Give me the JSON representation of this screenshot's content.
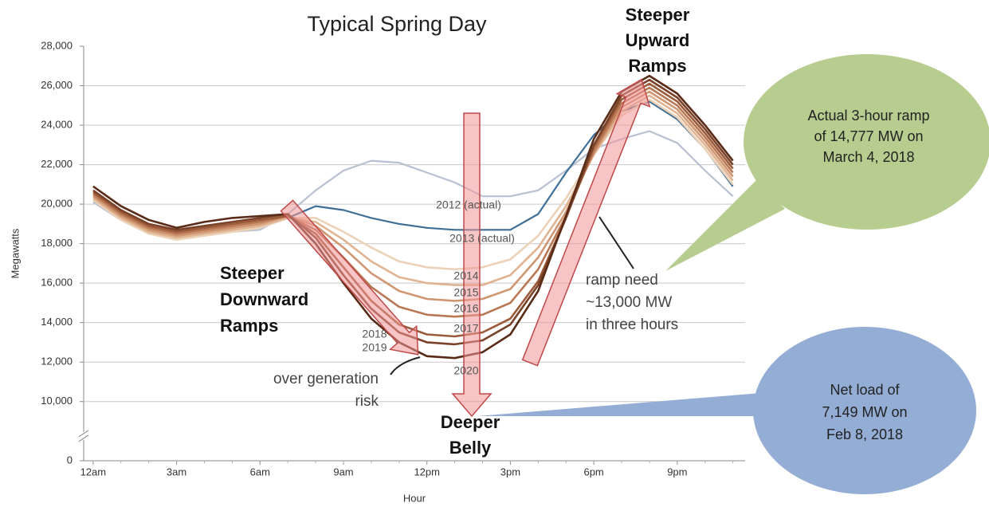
{
  "chart_data": {
    "type": "line",
    "title": "Typical Spring Day",
    "ylabel": "Megawatts",
    "xlabel": "Hour",
    "x": [
      0,
      1,
      2,
      3,
      4,
      5,
      6,
      7,
      8,
      9,
      10,
      11,
      12,
      13,
      14,
      15,
      16,
      17,
      18,
      19,
      20,
      21,
      22,
      23
    ],
    "xlim": [
      -0.34,
      23.44
    ],
    "xticks": [
      {
        "value": 0,
        "label": "12am"
      },
      {
        "value": 3,
        "label": "3am"
      },
      {
        "value": 6,
        "label": "6am"
      },
      {
        "value": 9,
        "label": "9am"
      },
      {
        "value": 12,
        "label": "12pm"
      },
      {
        "value": 15,
        "label": "3pm"
      },
      {
        "value": 18,
        "label": "6pm"
      },
      {
        "value": 21,
        "label": "9pm"
      }
    ],
    "ylim": [
      7000,
      28000
    ],
    "yticks": [
      0,
      {
        "value": 10000,
        "label": "10,000"
      },
      {
        "value": 12000,
        "label": "12,000"
      },
      {
        "value": 14000,
        "label": "14,000"
      },
      {
        "value": 16000,
        "label": "16,000"
      },
      {
        "value": 18000,
        "label": "18,000"
      },
      {
        "value": 20000,
        "label": "20,000"
      },
      {
        "value": 22000,
        "label": "22,000"
      },
      {
        "value": 24000,
        "label": "24,000"
      },
      {
        "value": 26000,
        "label": "26,000"
      },
      {
        "value": 28000,
        "label": "28,000"
      }
    ],
    "axis_break": true,
    "grid": true,
    "series": [
      {
        "name": "2012 (actual)",
        "color": "#b9c0d2",
        "values": [
          20100,
          19200,
          18700,
          18300,
          18500,
          18600,
          18700,
          19500,
          20700,
          21700,
          22200,
          22100,
          21600,
          21100,
          20400,
          20400,
          20700,
          21700,
          22800,
          23300,
          23700,
          23100,
          21700,
          20400
        ]
      },
      {
        "name": "2013 (actual)",
        "color": "#3f6f96",
        "values": [
          20200,
          19200,
          18600,
          18300,
          18500,
          18600,
          18800,
          19300,
          19900,
          19700,
          19300,
          19000,
          18800,
          18700,
          18700,
          18700,
          19500,
          21600,
          23500,
          24700,
          25200,
          24300,
          22800,
          20900
        ]
      },
      {
        "name": "2014",
        "color": "#ecd2b8",
        "values": [
          20200,
          19200,
          18500,
          18200,
          18400,
          18600,
          18800,
          19300,
          19300,
          18600,
          17800,
          17100,
          16800,
          16700,
          16800,
          17200,
          18400,
          20300,
          22500,
          24500,
          25300,
          24400,
          22800,
          21000
        ]
      },
      {
        "name": "2015",
        "color": "#e0b492",
        "values": [
          20300,
          19300,
          18600,
          18300,
          18500,
          18700,
          18900,
          19300,
          19100,
          18200,
          17100,
          16300,
          16000,
          15900,
          15900,
          16400,
          17800,
          19900,
          22500,
          24700,
          25500,
          24600,
          23000,
          21200
        ]
      },
      {
        "name": "2016",
        "color": "#d09672",
        "values": [
          20400,
          19400,
          18700,
          18400,
          18600,
          18800,
          19000,
          19400,
          18900,
          17800,
          16500,
          15600,
          15200,
          15100,
          15200,
          15700,
          17300,
          19600,
          22600,
          24900,
          25700,
          24800,
          23200,
          21400
        ]
      },
      {
        "name": "2017",
        "color": "#b97854",
        "values": [
          20500,
          19500,
          18800,
          18500,
          18700,
          18900,
          19100,
          19400,
          18700,
          17300,
          15800,
          14800,
          14400,
          14300,
          14400,
          15000,
          16700,
          19400,
          22700,
          25100,
          25900,
          25000,
          23400,
          21600
        ]
      },
      {
        "name": "2018",
        "color": "#9b5b3b",
        "values": [
          20600,
          19600,
          18900,
          18600,
          18800,
          19000,
          19200,
          19400,
          18500,
          16800,
          15100,
          13900,
          13400,
          13300,
          13500,
          14200,
          16100,
          19300,
          22900,
          25300,
          26100,
          25200,
          23600,
          21800
        ]
      },
      {
        "name": "2019",
        "color": "#7a4229",
        "values": [
          20700,
          19700,
          19000,
          18700,
          18900,
          19100,
          19300,
          19500,
          18300,
          16400,
          14700,
          13500,
          13000,
          12900,
          13100,
          13900,
          15900,
          19300,
          23000,
          25500,
          26300,
          25400,
          23800,
          22000
        ]
      },
      {
        "name": "2020",
        "color": "#5a2c18",
        "values": [
          20900,
          19900,
          19200,
          18800,
          19100,
          19300,
          19400,
          19500,
          18000,
          16000,
          14200,
          13000,
          12300,
          12200,
          12500,
          13400,
          15600,
          19400,
          23300,
          25700,
          26500,
          25600,
          24000,
          22200
        ]
      }
    ],
    "annotations": [
      [
        "Steeper",
        "Upward",
        "Ramps"
      ],
      [
        "Steeper",
        "Downward",
        "Ramps"
      ],
      [
        "Deeper",
        "Belly"
      ],
      [
        "over generation",
        "risk"
      ],
      [
        "ramp need",
        "~13,000 MW",
        "in three hours"
      ],
      [
        "Actual 3-hour ramp",
        "of 14,777 MW on",
        "March 4, 2018"
      ],
      [
        "Net load of",
        "7,149 MW on",
        "Feb 8, 2018"
      ]
    ]
  }
}
